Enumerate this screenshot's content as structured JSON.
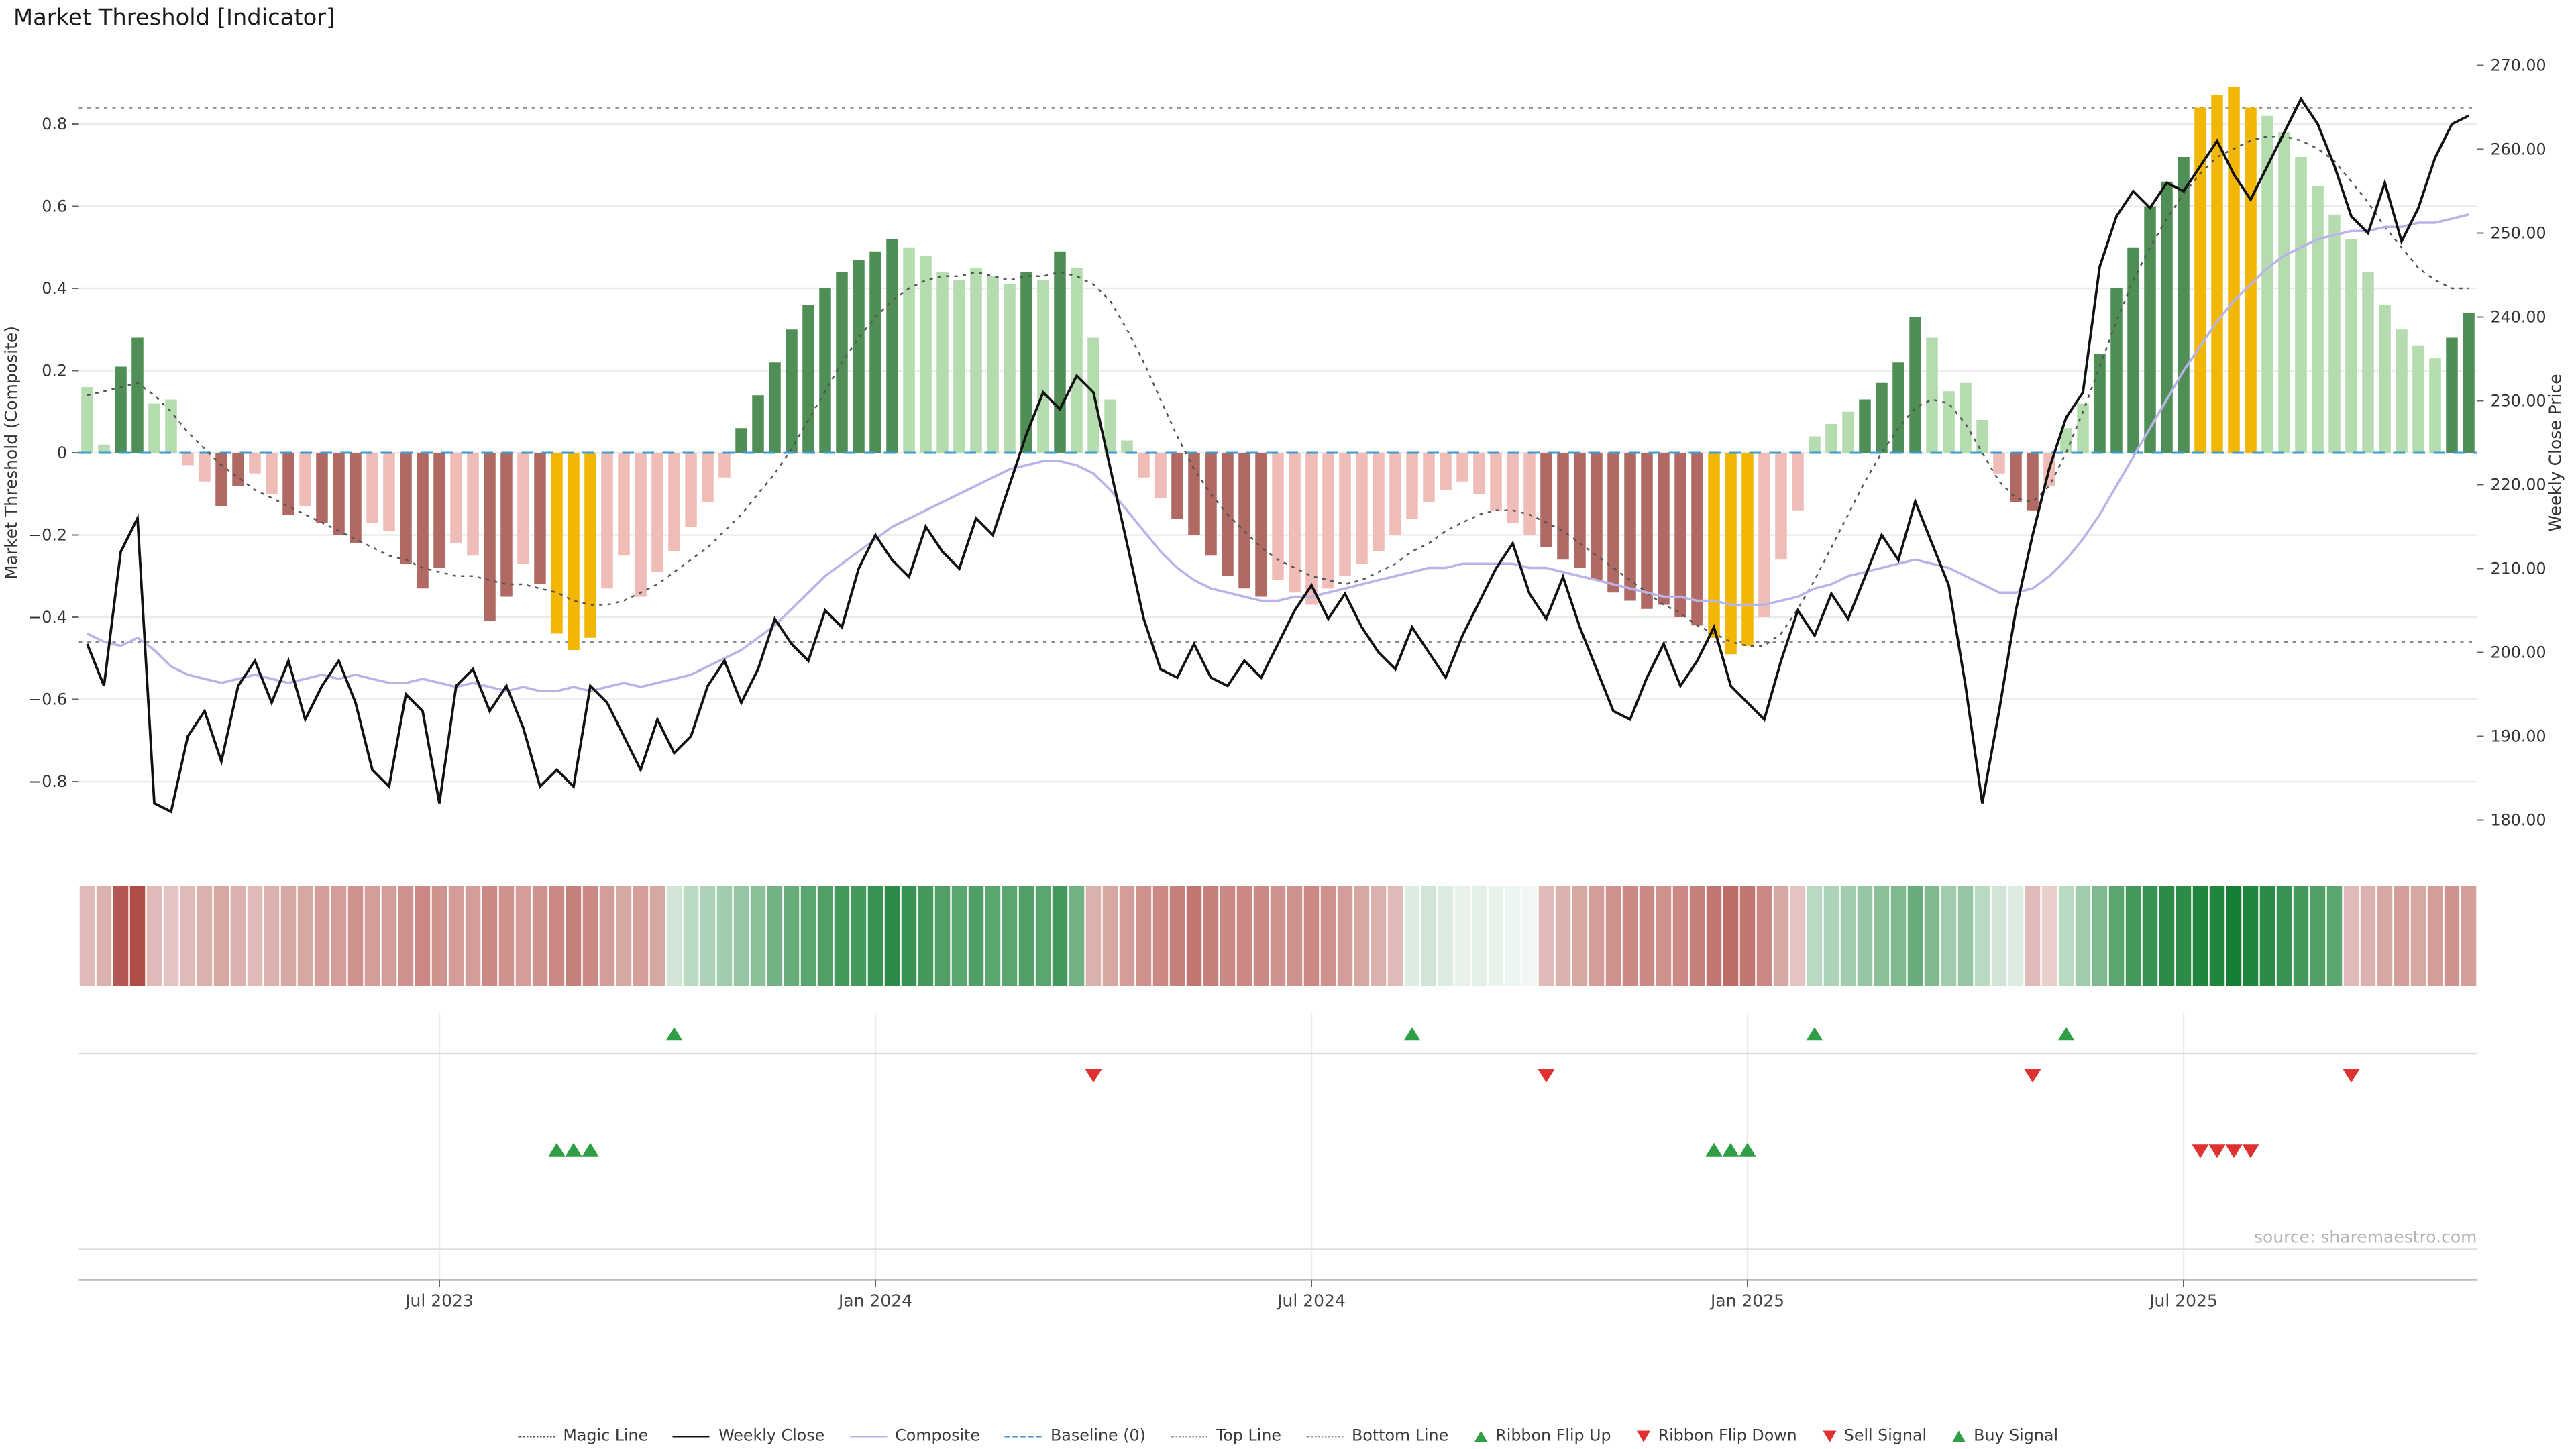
{
  "title": "Market Threshold [Indicator]",
  "source": "source: sharemaestro.com",
  "axis_titles": {
    "left": "Market Threshold (Composite)",
    "right": "Weekly Close Price"
  },
  "legend": {
    "items": [
      {
        "label": "Magic Line",
        "marker": "dotted-dark"
      },
      {
        "label": "Weekly Close",
        "marker": "solid-black"
      },
      {
        "label": "Composite",
        "marker": "solid-lavender"
      },
      {
        "label": "Baseline (0)",
        "marker": "dashed-blue"
      },
      {
        "label": "Top Line",
        "marker": "dotted-gray"
      },
      {
        "label": "Bottom Line",
        "marker": "dotted-gray"
      },
      {
        "label": "Ribbon Flip Up",
        "marker": "tri-up-green"
      },
      {
        "label": "Ribbon Flip Down",
        "marker": "tri-down-red"
      },
      {
        "label": "Sell Signal",
        "marker": "tri-down-red"
      },
      {
        "label": "Buy Signal",
        "marker": "tri-up-green"
      }
    ]
  },
  "chart_data": {
    "type": "bar",
    "title": "Market Threshold [Indicator]",
    "ylabel_left": "Market Threshold (Composite)",
    "ylabel_right": "Weekly Close Price",
    "ylim_left": [
      -0.98,
      0.98
    ],
    "ylim_right": [
      176,
      272
    ],
    "grid": true,
    "legend_position": "bottom",
    "top_line": 0.84,
    "bottom_line": -0.46,
    "baseline": 0,
    "x_ticks": [
      {
        "index": 21,
        "label": "Jul 2023"
      },
      {
        "index": 47,
        "label": "Jan 2024"
      },
      {
        "index": 73,
        "label": "Jul 2024"
      },
      {
        "index": 99,
        "label": "Jan 2025"
      },
      {
        "index": 125,
        "label": "Jul 2025"
      }
    ],
    "left_ticks": [
      {
        "label": "0.8",
        "value": 0.8
      },
      {
        "label": "0.6",
        "value": 0.6
      },
      {
        "label": "0.4",
        "value": 0.4
      },
      {
        "label": "0.2",
        "value": 0.2
      },
      {
        "label": "0",
        "value": 0
      },
      {
        "label": "−0.2",
        "value": -0.2
      },
      {
        "label": "−0.4",
        "value": -0.4
      },
      {
        "label": "−0.6",
        "value": -0.6
      },
      {
        "label": "−0.8",
        "value": -0.8
      }
    ],
    "right_ticks": [
      {
        "label": "270.00",
        "value": 270
      },
      {
        "label": "260.00",
        "value": 260
      },
      {
        "label": "250.00",
        "value": 250
      },
      {
        "label": "240.00",
        "value": 240
      },
      {
        "label": "230.00",
        "value": 230
      },
      {
        "label": "220.00",
        "value": 220
      },
      {
        "label": "210.00",
        "value": 210
      },
      {
        "label": "200.00",
        "value": 200
      },
      {
        "label": "190.00",
        "value": 190
      },
      {
        "label": "180.00",
        "value": 180
      }
    ],
    "palette": {
      "lg": "#b4dcae",
      "dg": "#4f8f55",
      "lr": "#f0bcb8",
      "dr": "#b06a63",
      "yl": "#f2b705",
      "baseline": "#3d9bd1",
      "grid": "#ebebeb",
      "dotted_bound": "#8a8a8a",
      "magic": "#555555",
      "weekly_close": "#111111",
      "composite": "#b9b3e8",
      "flip_up": "#2f9e44",
      "flip_down": "#e03131",
      "ribbon_neg": "#a63b34",
      "ribbon_pos": "#157f33"
    },
    "bars": {
      "values": [
        0.16,
        0.02,
        0.21,
        0.28,
        0.12,
        0.13,
        -0.03,
        -0.07,
        -0.13,
        -0.08,
        -0.05,
        -0.1,
        -0.15,
        -0.13,
        -0.17,
        -0.2,
        -0.22,
        -0.17,
        -0.19,
        -0.27,
        -0.33,
        -0.28,
        -0.22,
        -0.25,
        -0.41,
        -0.35,
        -0.27,
        -0.32,
        -0.44,
        -0.48,
        -0.45,
        -0.33,
        -0.25,
        -0.35,
        -0.29,
        -0.24,
        -0.18,
        -0.12,
        -0.06,
        0.06,
        0.14,
        0.22,
        0.3,
        0.36,
        0.4,
        0.44,
        0.47,
        0.49,
        0.52,
        0.5,
        0.48,
        0.44,
        0.42,
        0.45,
        0.43,
        0.41,
        0.44,
        0.42,
        0.49,
        0.45,
        0.28,
        0.13,
        0.03,
        -0.06,
        -0.11,
        -0.16,
        -0.2,
        -0.25,
        -0.3,
        -0.33,
        -0.35,
        -0.31,
        -0.34,
        -0.37,
        -0.33,
        -0.3,
        -0.27,
        -0.24,
        -0.2,
        -0.16,
        -0.12,
        -0.09,
        -0.07,
        -0.1,
        -0.14,
        -0.17,
        -0.2,
        -0.23,
        -0.26,
        -0.28,
        -0.31,
        -0.34,
        -0.36,
        -0.38,
        -0.37,
        -0.4,
        -0.42,
        -0.45,
        -0.49,
        -0.47,
        -0.4,
        -0.26,
        -0.14,
        0.04,
        0.07,
        0.1,
        0.13,
        0.17,
        0.22,
        0.33,
        0.28,
        0.15,
        0.17,
        0.08,
        -0.05,
        -0.12,
        -0.14,
        -0.08,
        0.06,
        0.12,
        0.24,
        0.4,
        0.5,
        0.6,
        0.66,
        0.72,
        0.84,
        0.87,
        0.89,
        0.84,
        0.82,
        0.78,
        0.72,
        0.65,
        0.58,
        0.52,
        0.44,
        0.36,
        0.3,
        0.26,
        0.23,
        0.28,
        0.34
      ],
      "colors": [
        "lg",
        "lg",
        "dg",
        "dg",
        "lg",
        "lg",
        "lr",
        "lr",
        "dr",
        "dr",
        "lr",
        "lr",
        "dr",
        "lr",
        "dr",
        "dr",
        "dr",
        "lr",
        "lr",
        "dr",
        "dr",
        "dr",
        "lr",
        "lr",
        "dr",
        "dr",
        "lr",
        "dr",
        "yl",
        "yl",
        "yl",
        "lr",
        "lr",
        "lr",
        "lr",
        "lr",
        "lr",
        "lr",
        "lr",
        "dg",
        "dg",
        "dg",
        "dg",
        "dg",
        "dg",
        "dg",
        "dg",
        "dg",
        "dg",
        "lg",
        "lg",
        "lg",
        "lg",
        "lg",
        "lg",
        "lg",
        "dg",
        "lg",
        "dg",
        "lg",
        "lg",
        "lg",
        "lg",
        "lr",
        "lr",
        "dr",
        "dr",
        "dr",
        "dr",
        "dr",
        "dr",
        "lr",
        "lr",
        "lr",
        "lr",
        "lr",
        "lr",
        "lr",
        "lr",
        "lr",
        "lr",
        "lr",
        "lr",
        "lr",
        "lr",
        "lr",
        "lr",
        "dr",
        "dr",
        "dr",
        "dr",
        "dr",
        "dr",
        "dr",
        "dr",
        "dr",
        "dr",
        "yl",
        "yl",
        "yl",
        "lr",
        "lr",
        "lr",
        "lg",
        "lg",
        "lg",
        "dg",
        "dg",
        "dg",
        "dg",
        "lg",
        "lg",
        "lg",
        "lg",
        "lr",
        "dr",
        "dr",
        "lr",
        "lg",
        "lg",
        "dg",
        "dg",
        "dg",
        "dg",
        "dg",
        "dg",
        "yl",
        "yl",
        "yl",
        "yl",
        "lg",
        "lg",
        "lg",
        "lg",
        "lg",
        "lg",
        "lg",
        "lg",
        "lg",
        "lg",
        "lg",
        "dg",
        "dg"
      ]
    },
    "series": [
      {
        "name": "Weekly Close",
        "type": "line",
        "axis": "right",
        "style": "solid",
        "values": [
          201,
          196,
          212,
          216,
          182,
          181,
          190,
          193,
          187,
          196,
          199,
          194,
          199,
          192,
          196,
          199,
          194,
          186,
          184,
          195,
          193,
          182,
          196,
          198,
          193,
          196,
          191,
          184,
          186,
          184,
          196,
          194,
          190,
          186,
          192,
          188,
          190,
          196,
          199,
          194,
          198,
          204,
          201,
          199,
          205,
          203,
          210,
          214,
          211,
          209,
          215,
          212,
          210,
          216,
          214,
          220,
          226,
          231,
          229,
          233,
          231,
          222,
          213,
          204,
          198,
          197,
          201,
          197,
          196,
          199,
          197,
          201,
          205,
          208,
          204,
          207,
          203,
          200,
          198,
          203,
          200,
          197,
          202,
          206,
          210,
          213,
          207,
          204,
          209,
          203,
          198,
          193,
          192,
          197,
          201,
          196,
          199,
          203,
          196,
          194,
          192,
          199,
          205,
          202,
          207,
          204,
          209,
          214,
          211,
          218,
          213,
          208,
          196,
          182,
          193,
          205,
          214,
          222,
          228,
          231,
          246,
          252,
          255,
          253,
          256,
          255,
          258,
          261,
          257,
          254,
          258,
          262,
          266,
          263,
          258,
          252,
          250,
          256,
          249,
          253,
          259,
          263,
          264
        ]
      },
      {
        "name": "Composite",
        "type": "line",
        "axis": "left",
        "style": "solid",
        "values": [
          -0.44,
          -0.46,
          -0.47,
          -0.45,
          -0.48,
          -0.52,
          -0.54,
          -0.55,
          -0.56,
          -0.55,
          -0.54,
          -0.55,
          -0.56,
          -0.55,
          -0.54,
          -0.55,
          -0.54,
          -0.55,
          -0.56,
          -0.56,
          -0.55,
          -0.56,
          -0.57,
          -0.56,
          -0.57,
          -0.58,
          -0.57,
          -0.58,
          -0.58,
          -0.57,
          -0.58,
          -0.57,
          -0.56,
          -0.57,
          -0.56,
          -0.55,
          -0.54,
          -0.52,
          -0.5,
          -0.48,
          -0.45,
          -0.42,
          -0.38,
          -0.34,
          -0.3,
          -0.27,
          -0.24,
          -0.21,
          -0.18,
          -0.16,
          -0.14,
          -0.12,
          -0.1,
          -0.08,
          -0.06,
          -0.04,
          -0.03,
          -0.02,
          -0.02,
          -0.03,
          -0.05,
          -0.09,
          -0.14,
          -0.19,
          -0.24,
          -0.28,
          -0.31,
          -0.33,
          -0.34,
          -0.35,
          -0.36,
          -0.36,
          -0.35,
          -0.35,
          -0.34,
          -0.33,
          -0.32,
          -0.31,
          -0.3,
          -0.29,
          -0.28,
          -0.28,
          -0.27,
          -0.27,
          -0.27,
          -0.27,
          -0.28,
          -0.28,
          -0.29,
          -0.3,
          -0.31,
          -0.32,
          -0.33,
          -0.34,
          -0.35,
          -0.35,
          -0.36,
          -0.36,
          -0.37,
          -0.37,
          -0.37,
          -0.36,
          -0.35,
          -0.33,
          -0.32,
          -0.3,
          -0.29,
          -0.28,
          -0.27,
          -0.26,
          -0.27,
          -0.28,
          -0.3,
          -0.32,
          -0.34,
          -0.34,
          -0.33,
          -0.3,
          -0.26,
          -0.21,
          -0.15,
          -0.08,
          -0.01,
          0.06,
          0.13,
          0.2,
          0.26,
          0.32,
          0.37,
          0.41,
          0.45,
          0.48,
          0.5,
          0.52,
          0.53,
          0.54,
          0.54,
          0.55,
          0.55,
          0.56,
          0.56,
          0.57,
          0.58
        ]
      },
      {
        "name": "Magic Line",
        "type": "line",
        "axis": "left",
        "style": "dotted",
        "values": [
          0.14,
          0.15,
          0.16,
          0.17,
          0.14,
          0.1,
          0.05,
          0.01,
          -0.03,
          -0.06,
          -0.09,
          -0.11,
          -0.13,
          -0.15,
          -0.17,
          -0.19,
          -0.21,
          -0.23,
          -0.25,
          -0.26,
          -0.28,
          -0.29,
          -0.3,
          -0.3,
          -0.31,
          -0.32,
          -0.32,
          -0.33,
          -0.34,
          -0.36,
          -0.37,
          -0.37,
          -0.36,
          -0.34,
          -0.32,
          -0.29,
          -0.26,
          -0.23,
          -0.19,
          -0.15,
          -0.1,
          -0.05,
          0.01,
          0.08,
          0.15,
          0.22,
          0.28,
          0.33,
          0.37,
          0.4,
          0.42,
          0.43,
          0.43,
          0.44,
          0.43,
          0.42,
          0.43,
          0.43,
          0.44,
          0.43,
          0.41,
          0.37,
          0.3,
          0.22,
          0.13,
          0.04,
          -0.04,
          -0.1,
          -0.15,
          -0.19,
          -0.23,
          -0.26,
          -0.28,
          -0.3,
          -0.31,
          -0.32,
          -0.31,
          -0.29,
          -0.27,
          -0.24,
          -0.22,
          -0.19,
          -0.17,
          -0.15,
          -0.14,
          -0.14,
          -0.15,
          -0.17,
          -0.19,
          -0.22,
          -0.25,
          -0.28,
          -0.31,
          -0.34,
          -0.37,
          -0.39,
          -0.42,
          -0.44,
          -0.46,
          -0.47,
          -0.47,
          -0.44,
          -0.38,
          -0.31,
          -0.23,
          -0.15,
          -0.07,
          0.0,
          0.06,
          0.11,
          0.13,
          0.12,
          0.07,
          0.0,
          -0.07,
          -0.11,
          -0.12,
          -0.08,
          0.0,
          0.1,
          0.21,
          0.32,
          0.42,
          0.5,
          0.57,
          0.63,
          0.68,
          0.72,
          0.74,
          0.76,
          0.77,
          0.77,
          0.76,
          0.74,
          0.71,
          0.66,
          0.61,
          0.55,
          0.5,
          0.45,
          0.42,
          0.4,
          0.4
        ]
      }
    ],
    "ribbon": [
      -0.35,
      -0.4,
      -0.85,
      -0.9,
      -0.35,
      -0.3,
      -0.35,
      -0.4,
      -0.45,
      -0.4,
      -0.35,
      -0.4,
      -0.45,
      -0.45,
      -0.5,
      -0.5,
      -0.55,
      -0.5,
      -0.5,
      -0.55,
      -0.6,
      -0.55,
      -0.5,
      -0.5,
      -0.6,
      -0.55,
      -0.5,
      -0.55,
      -0.6,
      -0.65,
      -0.6,
      -0.5,
      -0.45,
      -0.5,
      -0.45,
      0.2,
      0.3,
      0.35,
      0.4,
      0.45,
      0.5,
      0.6,
      0.65,
      0.7,
      0.75,
      0.8,
      0.8,
      0.85,
      0.9,
      0.85,
      0.8,
      0.75,
      0.7,
      0.75,
      0.7,
      0.7,
      0.75,
      0.7,
      0.8,
      0.6,
      -0.4,
      -0.45,
      -0.5,
      -0.55,
      -0.6,
      -0.65,
      -0.7,
      -0.65,
      -0.6,
      -0.6,
      -0.6,
      -0.55,
      -0.55,
      -0.6,
      -0.55,
      -0.5,
      -0.45,
      -0.4,
      -0.35,
      0.15,
      0.2,
      0.15,
      0.1,
      0.12,
      0.1,
      0.08,
      0.06,
      -0.35,
      -0.4,
      -0.45,
      -0.5,
      -0.55,
      -0.6,
      -0.6,
      -0.55,
      -0.6,
      -0.65,
      -0.7,
      -0.75,
      -0.7,
      -0.6,
      -0.45,
      -0.3,
      0.3,
      0.35,
      0.4,
      0.45,
      0.5,
      0.55,
      0.65,
      0.55,
      0.4,
      0.45,
      0.3,
      0.2,
      0.15,
      -0.35,
      -0.25,
      0.3,
      0.4,
      0.55,
      0.7,
      0.8,
      0.85,
      0.9,
      0.9,
      0.95,
      0.95,
      1.0,
      0.95,
      0.9,
      0.85,
      0.8,
      0.75,
      0.7,
      -0.35,
      -0.4,
      -0.45,
      -0.5,
      -0.45,
      -0.5,
      -0.55,
      -0.5
    ],
    "signals": {
      "ribbon_flip_up": [
        35,
        79,
        103,
        118
      ],
      "ribbon_flip_down": [
        60,
        87,
        116,
        135
      ],
      "buy": [
        28,
        29,
        30,
        97,
        98,
        99
      ],
      "sell": [
        126,
        127,
        128,
        129
      ]
    }
  }
}
